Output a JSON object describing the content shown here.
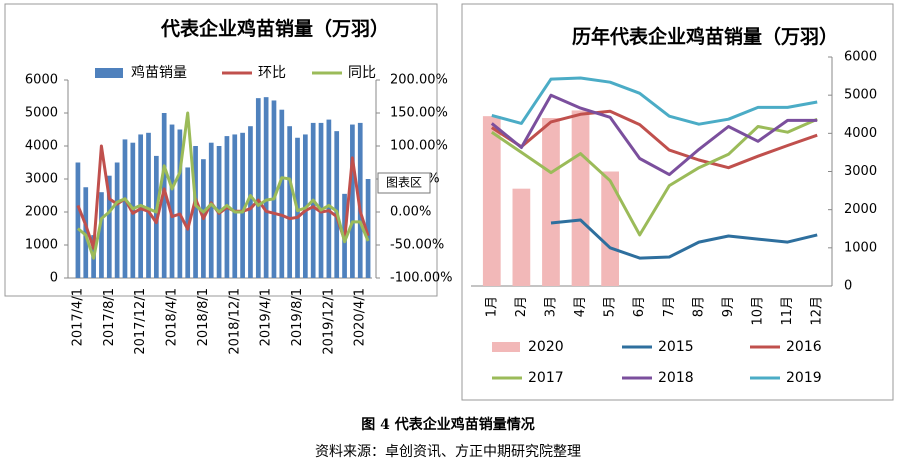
{
  "chart_data": [
    {
      "type": "bar",
      "title": "代表企业鸡苗销量（万羽）",
      "categories": [
        "2017/4/1",
        null,
        null,
        null,
        "2017/8/1",
        null,
        null,
        null,
        "2017/12/1",
        null,
        null,
        null,
        "2018/4/1",
        null,
        null,
        null,
        "2018/8/1",
        null,
        null,
        null,
        "2018/12/1",
        null,
        null,
        null,
        "2019/4/1",
        null,
        null,
        null,
        "2019/8/1",
        null,
        null,
        null,
        "2019/12/1",
        null,
        null,
        null,
        "2020/4/1",
        null
      ],
      "series": [
        {
          "name": "鸡苗销量",
          "type": "bar",
          "color": "#4f81bd",
          "values": [
            3500,
            2750,
            1300,
            2600,
            3100,
            3500,
            4200,
            4100,
            4350,
            4400,
            3700,
            5000,
            4650,
            4500,
            3350,
            4000,
            3600,
            4100,
            4000,
            4300,
            4350,
            4400,
            4600,
            5450,
            5480,
            5380,
            5100,
            4600,
            4250,
            4350,
            4700,
            4700,
            4800,
            4450,
            2550,
            4650,
            4700,
            3000
          ]
        },
        {
          "name": "环比",
          "type": "line",
          "axis": "y2",
          "color": "#c0504d",
          "values": [
            10,
            -20,
            -55,
            100,
            20,
            12,
            20,
            -2,
            5,
            1,
            -16,
            35,
            -7,
            -3,
            -26,
            20,
            -10,
            14,
            -2,
            7,
            1,
            1,
            5,
            18,
            1,
            -2,
            -5,
            -10,
            -8,
            2,
            8,
            0,
            2,
            -7,
            -43,
            82,
            1,
            -36
          ]
        },
        {
          "name": "同比",
          "type": "line",
          "axis": "y2",
          "color": "#9bbb59",
          "values": [
            -25,
            -35,
            -70,
            -10,
            0,
            15,
            20,
            5,
            10,
            5,
            0,
            70,
            35,
            60,
            150,
            10,
            0,
            12,
            0,
            10,
            0,
            0,
            25,
            10,
            18,
            20,
            52,
            50,
            2,
            6,
            18,
            3,
            10,
            1,
            -45,
            -15,
            -15,
            -44
          ]
        }
      ],
      "ylim": [
        0,
        6000
      ],
      "yticks": [
        0,
        1000,
        2000,
        3000,
        4000,
        5000,
        6000
      ],
      "y2lim": [
        -100,
        200
      ],
      "y2ticks": [
        {
          "value": -100,
          "label": "-100.00%"
        },
        {
          "value": -50,
          "label": "-50.00%"
        },
        {
          "value": 0,
          "label": "0.00%"
        },
        {
          "value": 50,
          "label": "50.00%"
        },
        {
          "value": 100,
          "label": "100.00%"
        },
        {
          "value": 150,
          "label": "150.00%"
        },
        {
          "value": 200,
          "label": "200.00%"
        }
      ],
      "grid": false,
      "legend": "top",
      "annotation": "图表区"
    },
    {
      "type": "bar",
      "title": "历年代表企业鸡苗销量（万羽）",
      "categories": [
        "1月",
        "2月",
        "3月",
        "4月",
        "5月",
        "6月",
        "7月",
        "8月",
        "9月",
        "10月",
        "11月",
        "12月"
      ],
      "series": [
        {
          "name": "2020",
          "type": "bar",
          "color": "#f2b8b8",
          "values": [
            4450,
            2550,
            4400,
            4600,
            3000,
            null,
            null,
            null,
            null,
            null,
            null,
            null
          ]
        },
        {
          "name": "2015",
          "type": "line",
          "color": "#2e6f9e",
          "values": [
            null,
            null,
            1650,
            1730,
            1000,
            730,
            760,
            1150,
            1310,
            1230,
            1150,
            1340
          ]
        },
        {
          "name": "2016",
          "type": "line",
          "color": "#c0504d",
          "values": [
            4150,
            3650,
            4300,
            4500,
            4580,
            4230,
            3560,
            3300,
            3100,
            3400,
            3680,
            3950
          ]
        },
        {
          "name": "2017",
          "type": "line",
          "color": "#9bbb59",
          "values": [
            4030,
            3500,
            2970,
            3470,
            2760,
            1340,
            2630,
            3100,
            3450,
            4180,
            4030,
            4370
          ]
        },
        {
          "name": "2018",
          "type": "line",
          "color": "#7b4f9d",
          "values": [
            4260,
            3630,
            5000,
            4660,
            4420,
            3340,
            2920,
            3580,
            4180,
            3790,
            4340,
            4340
          ]
        },
        {
          "name": "2019",
          "type": "line",
          "color": "#4bacc6",
          "values": [
            4470,
            4260,
            5420,
            5450,
            5340,
            5050,
            4450,
            4240,
            4370,
            4680,
            4680,
            4820
          ]
        }
      ],
      "ylim": [
        0,
        6000
      ],
      "yticks": [
        0,
        1000,
        2000,
        3000,
        4000,
        5000,
        6000
      ],
      "grid": false,
      "legend": "bottom"
    }
  ],
  "caption": "图 4  代表企业鸡苗销量情况",
  "source": "资料来源：卓创资讯、方正中期研究院整理"
}
